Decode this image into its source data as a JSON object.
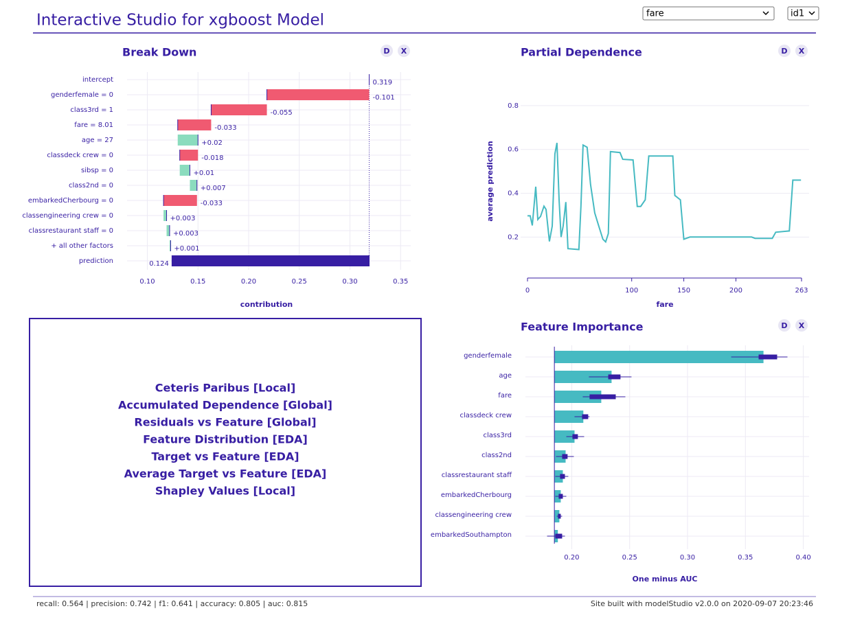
{
  "header": {
    "title": "Interactive Studio for xgboost Model",
    "selects": [
      "fare",
      "id1"
    ]
  },
  "panel_buttons": [
    "D",
    "X"
  ],
  "menu": [
    "Ceteris Paribus [Local]",
    "Accumulated Dependence [Global]",
    "Residuals vs Feature [Global]",
    "Feature Distribution [EDA]",
    "Target vs Feature [EDA]",
    "Average Target vs Feature [EDA]",
    "Shapley Values [Local]"
  ],
  "footer": {
    "metrics": "recall: 0.564 | precision: 0.742 | f1: 0.641 | accuracy: 0.805 | auc: 0.815",
    "credit": "Site built with modelStudio v2.0.0 on 2020-09-07 20:23:46"
  },
  "chart_data": [
    {
      "type": "waterfall",
      "title": "Break Down",
      "xlabel": "contribution",
      "categories": [
        "intercept",
        "genderfemale = 0",
        "class3rd = 1",
        "fare = 8.01",
        "age = 27",
        "classdeck crew = 0",
        "sibsp = 0",
        "class2nd = 0",
        "embarkedCherbourg = 0",
        "classengineering crew = 0",
        "classrestaurant staff = 0",
        "+ all other factors",
        "prediction"
      ],
      "values": [
        0.319,
        -0.101,
        -0.055,
        -0.033,
        0.02,
        -0.018,
        0.01,
        0.007,
        -0.033,
        0.003,
        0.003,
        0.001,
        0.124
      ],
      "value_labels": [
        "0.319",
        "-0.101",
        "-0.055",
        "-0.033",
        "+0.02",
        "-0.018",
        "+0.01",
        "+0.007",
        "-0.033",
        "+0.003",
        "+0.003",
        "+0.001",
        "0.124"
      ],
      "colors": {
        "negative": "#f05a71",
        "positive": "#8bdcbe",
        "total": "#371ea3"
      },
      "xlim": [
        0.08,
        0.36
      ],
      "xticks": [
        {
          "value": 0.1,
          "label": "0.10"
        },
        0.15,
        {
          "value": 0.2,
          "label": "0.20"
        },
        0.25,
        {
          "value": 0.3,
          "label": "0.30"
        },
        0.35
      ],
      "grid": true
    },
    {
      "type": "line",
      "title": "Partial Dependence",
      "xlabel": "fare",
      "ylabel": "average prediction",
      "color": "#46bac2",
      "x": [
        0,
        2.6,
        4.6,
        7.9,
        9.9,
        12.5,
        15.8,
        17.8,
        21,
        23.7,
        26.3,
        28.3,
        30.3,
        32.2,
        34.2,
        36.8,
        38.8,
        49.3,
        51.3,
        53.3,
        57.2,
        60.5,
        64.5,
        68.4,
        72.4,
        75,
        77.6,
        79.6,
        88.8,
        91.4,
        101.3,
        105.3,
        108.6,
        113,
        116.4,
        139.5,
        141.4,
        146.7,
        150,
        155.9,
        215.1,
        218.4,
        234.9,
        238.2,
        251.3,
        254.6,
        262.5
      ],
      "values": [
        0.297,
        0.297,
        0.253,
        0.43,
        0.28,
        0.294,
        0.341,
        0.326,
        0.18,
        0.25,
        0.58,
        0.63,
        0.37,
        0.2,
        0.25,
        0.36,
        0.147,
        0.143,
        0.34,
        0.62,
        0.61,
        0.44,
        0.31,
        0.25,
        0.19,
        0.178,
        0.216,
        0.59,
        0.586,
        0.555,
        0.552,
        0.34,
        0.34,
        0.37,
        0.57,
        0.57,
        0.39,
        0.37,
        0.19,
        0.2,
        0.2,
        0.194,
        0.194,
        0.222,
        0.228,
        0.46,
        0.46
      ],
      "xlim": [
        0,
        263
      ],
      "xticks": [
        0,
        100,
        150,
        200,
        263
      ],
      "ylim": [
        0.06,
        0.9
      ],
      "yticks": [
        0.8,
        0.6,
        0.4,
        0.2
      ],
      "grid": true
    },
    {
      "type": "importance",
      "title": "Feature Importance",
      "xlabel": "One minus AUC",
      "color": "#46bac2",
      "box_color": "#371ea3",
      "baseline": 0.185,
      "categories": [
        "genderfemale",
        "age",
        "fare",
        "classdeck crew",
        "class3rd",
        "class2nd",
        "classrestaurant staff",
        "embarkedCherbourg",
        "classengineering crew",
        "embarkedSouthampton"
      ],
      "values": [
        0.3656,
        0.2344,
        0.2255,
        0.21,
        0.2024,
        0.1947,
        0.1923,
        0.1905,
        0.1893,
        0.188
      ],
      "min": [
        0.3377,
        0.2148,
        0.2095,
        0.2024,
        0.1953,
        0.1864,
        0.1858,
        0.1858,
        0.187,
        0.1787
      ],
      "q1": [
        0.3614,
        0.2315,
        0.2154,
        0.2089,
        0.2006,
        0.1917,
        0.1899,
        0.1887,
        0.1881,
        0.1858
      ],
      "q3": [
        0.3774,
        0.2421,
        0.238,
        0.2142,
        0.2053,
        0.1964,
        0.1941,
        0.1923,
        0.1905,
        0.1917
      ],
      "max": [
        0.3863,
        0.2516,
        0.2463,
        0.2154,
        0.2107,
        0.2018,
        0.197,
        0.1953,
        0.1917,
        0.1941
      ],
      "xlim": [
        0.16,
        0.405
      ],
      "xticks": [
        {
          "value": 0.2,
          "label": "0.20"
        },
        0.25,
        {
          "value": 0.3,
          "label": "0.30"
        },
        0.35,
        {
          "value": 0.4,
          "label": "0.40"
        }
      ],
      "grid": true
    }
  ]
}
